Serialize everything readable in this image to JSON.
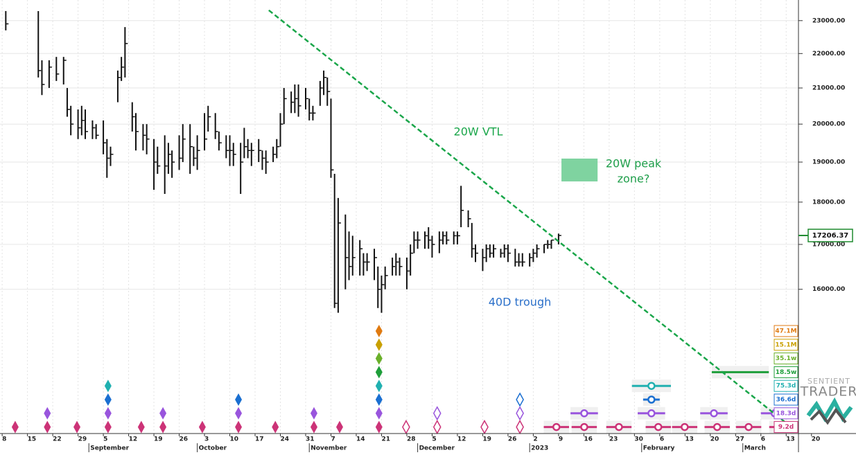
{
  "chart_data": {
    "type": "ohlc",
    "log_y": true,
    "grid": true,
    "color": "#111111",
    "xlim": [
      -0.6,
      220.4
    ],
    "ylim": [
      13180,
      23650
    ],
    "yticks": [
      {
        "value": 16000,
        "label": "16000.00"
      },
      {
        "value": 17000,
        "label": "17000.00"
      },
      {
        "value": 18000,
        "label": "18000.00"
      },
      {
        "value": 19000,
        "label": "19000.00"
      },
      {
        "value": 20000,
        "label": "20000.00"
      },
      {
        "value": 21000,
        "label": "21000.00"
      },
      {
        "value": 22000,
        "label": "22000.00"
      },
      {
        "value": 23000,
        "label": "23000.00"
      }
    ],
    "xticks": [
      {
        "value": 0,
        "label": "8"
      },
      {
        "value": 7,
        "label": "15"
      },
      {
        "value": 14,
        "label": "22"
      },
      {
        "value": 21,
        "label": "29"
      },
      {
        "value": 28,
        "label": "5"
      },
      {
        "value": 35,
        "label": "12"
      },
      {
        "value": 42,
        "label": "19"
      },
      {
        "value": 49,
        "label": "26"
      },
      {
        "value": 56,
        "label": "3"
      },
      {
        "value": 63,
        "label": "10"
      },
      {
        "value": 70,
        "label": "17"
      },
      {
        "value": 77,
        "label": "24"
      },
      {
        "value": 84,
        "label": "31"
      },
      {
        "value": 91,
        "label": "7"
      },
      {
        "value": 98,
        "label": "14"
      },
      {
        "value": 105,
        "label": "21"
      },
      {
        "value": 112,
        "label": "28"
      },
      {
        "value": 119,
        "label": "5"
      },
      {
        "value": 126,
        "label": "12"
      },
      {
        "value": 133,
        "label": "19"
      },
      {
        "value": 140,
        "label": "26"
      },
      {
        "value": 147,
        "label": "2"
      },
      {
        "value": 154,
        "label": "9"
      },
      {
        "value": 161,
        "label": "16"
      },
      {
        "value": 168,
        "label": "23"
      },
      {
        "value": 175,
        "label": "30"
      },
      {
        "value": 182,
        "label": "6"
      },
      {
        "value": 189,
        "label": "13"
      },
      {
        "value": 196,
        "label": "20"
      },
      {
        "value": 203,
        "label": "27"
      },
      {
        "value": 210,
        "label": "6"
      },
      {
        "value": 217,
        "label": "13"
      },
      {
        "value": 224,
        "label": "20"
      }
    ],
    "months": [
      {
        "value": 24,
        "label": "September"
      },
      {
        "value": 54,
        "label": "October"
      },
      {
        "value": 85,
        "label": "November"
      },
      {
        "value": 115,
        "label": "December"
      },
      {
        "value": 146,
        "label": "2023"
      },
      {
        "value": 177,
        "label": "February"
      },
      {
        "value": 205,
        "label": "March"
      }
    ],
    "x": [
      1,
      10,
      11,
      13,
      15,
      17,
      18,
      19,
      21,
      22,
      23,
      25,
      26,
      28,
      29,
      30,
      32,
      33,
      34,
      36,
      37,
      39,
      40,
      42,
      43,
      45,
      46,
      47,
      49,
      50,
      52,
      53,
      54,
      56,
      57,
      59,
      60,
      62,
      63,
      64,
      66,
      67,
      68,
      69,
      71,
      72,
      73,
      75,
      76,
      77,
      78,
      80,
      81,
      82,
      84,
      85,
      86,
      88,
      89,
      90,
      91,
      92,
      93,
      95,
      96,
      97,
      99,
      100,
      101,
      103,
      104,
      105,
      106,
      108,
      109,
      110,
      112,
      113,
      114,
      115,
      117,
      118,
      119,
      121,
      122,
      123,
      125,
      126,
      127,
      129,
      130,
      131,
      133,
      134,
      135,
      136,
      138,
      139,
      140,
      142,
      143,
      144,
      146,
      147,
      148,
      150,
      151,
      152,
      154
    ],
    "high": [
      23300,
      23300,
      21800,
      21800,
      21900,
      21900,
      21000,
      20500,
      20400,
      20500,
      20400,
      20100,
      20000,
      20100,
      19600,
      19400,
      21500,
      21900,
      22800,
      20600,
      20300,
      20000,
      20000,
      19600,
      19400,
      19700,
      19500,
      19300,
      19700,
      20000,
      20000,
      19400,
      19700,
      20300,
      20500,
      20300,
      19800,
      19700,
      19700,
      19500,
      19500,
      19900,
      19600,
      19500,
      19600,
      19300,
      19300,
      19400,
      19600,
      20300,
      21000,
      20900,
      21100,
      21100,
      21000,
      20700,
      20500,
      21200,
      21500,
      21300,
      20700,
      18700,
      18100,
      17700,
      17300,
      17200,
      17100,
      16800,
      16800,
      16900,
      16500,
      16300,
      16500,
      16700,
      16800,
      16700,
      16700,
      17000,
      17300,
      17300,
      17300,
      17400,
      17200,
      17300,
      17300,
      17300,
      17300,
      17300,
      18400,
      17800,
      17500,
      17000,
      16900,
      17000,
      17000,
      17000,
      16900,
      17000,
      17000,
      16900,
      16800,
      16800,
      16800,
      16900,
      17000,
      17000,
      17100,
      17100,
      17250
    ],
    "low": [
      22700,
      21300,
      20800,
      21000,
      21200,
      21100,
      20200,
      19700,
      19600,
      19700,
      19600,
      19600,
      19600,
      19200,
      18600,
      18900,
      20600,
      21200,
      21300,
      19800,
      19300,
      19300,
      19200,
      18300,
      18700,
      18200,
      18700,
      18600,
      18800,
      19000,
      18700,
      18900,
      18800,
      19300,
      19800,
      19600,
      19300,
      19100,
      18900,
      18900,
      18200,
      19100,
      19100,
      18900,
      19000,
      18800,
      18700,
      19000,
      19100,
      19400,
      20000,
      20300,
      20300,
      20200,
      20400,
      20100,
      20100,
      20500,
      20800,
      20500,
      18600,
      15600,
      15500,
      16000,
      16200,
      16300,
      16300,
      16300,
      16400,
      16200,
      15600,
      15500,
      16000,
      16300,
      16300,
      16300,
      16000,
      16300,
      16800,
      16900,
      16900,
      16900,
      16700,
      16800,
      17000,
      17000,
      17000,
      17000,
      17400,
      17400,
      16700,
      16600,
      16400,
      16600,
      16700,
      16700,
      16700,
      16700,
      16600,
      16500,
      16500,
      16500,
      16500,
      16600,
      16700,
      16800,
      16900,
      16900,
      17000
    ],
    "close": [
      22900,
      21500,
      21100,
      21600,
      21400,
      21800,
      20400,
      20000,
      19900,
      20100,
      19800,
      19900,
      19700,
      19500,
      19100,
      19200,
      21300,
      21600,
      22300,
      20200,
      19800,
      19700,
      19600,
      19000,
      18900,
      18900,
      19200,
      19000,
      19100,
      19600,
      19400,
      19100,
      19300,
      19600,
      20200,
      19800,
      19500,
      19300,
      19300,
      19200,
      19000,
      19400,
      19300,
      19300,
      19300,
      19100,
      19000,
      19200,
      19400,
      20000,
      20700,
      20600,
      20700,
      20500,
      20700,
      20300,
      20300,
      21000,
      21300,
      20900,
      18800,
      15700,
      17500,
      16700,
      16500,
      16700,
      16900,
      16600,
      16600,
      16700,
      16000,
      16100,
      16300,
      16500,
      16600,
      16500,
      16400,
      16800,
      17100,
      17100,
      17200,
      17100,
      17000,
      17100,
      17200,
      17100,
      17200,
      17200,
      17800,
      17600,
      16900,
      16800,
      16700,
      16900,
      16800,
      16900,
      16800,
      16900,
      16800,
      16600,
      16600,
      16600,
      16700,
      16800,
      16900,
      17000,
      17000,
      17100,
      17206.37
    ],
    "last_price": 17206.37,
    "last_price_color": "#1e8a2e",
    "trendline": {
      "label": "20W VTL",
      "color": "#1aa64a",
      "x1": 73.8,
      "y1": 23325,
      "x2": 220.4,
      "y2": 13180
    },
    "peak_zone": {
      "label": [
        "20W peak",
        "zone?"
      ],
      "color": "#7fd3a0",
      "text_color": "#1e9e4a",
      "x1": 154.8,
      "x2": 164.8,
      "y1": 18510,
      "y2": 19090
    },
    "trough_note": {
      "label": "40D trough",
      "color": "#2a6fc9"
    },
    "cycles": [
      {
        "name": "47.1M",
        "color": "#e07a10",
        "troughs": [
          104.3
        ],
        "open_troughs": [],
        "projections": [],
        "window": 0
      },
      {
        "name": "15.1M",
        "color": "#c9a000",
        "troughs": [
          104.3
        ],
        "open_troughs": [],
        "projections": [],
        "window": 0
      },
      {
        "name": "35.1w",
        "color": "#6ab02a",
        "troughs": [
          104.3
        ],
        "open_troughs": [],
        "projections": [],
        "window": 0
      },
      {
        "name": "18.5w",
        "color": "#1e9e3a",
        "troughs": [
          104.3
        ],
        "open_troughs": [],
        "projections": [
          204.3
        ],
        "window": 7.9,
        "circle": false
      },
      {
        "name": "75.3d",
        "color": "#20b0b0",
        "troughs": [
          29.3,
          104.3
        ],
        "open_troughs": [],
        "projections": [
          179.7
        ],
        "window": 5.4
      },
      {
        "name": "36.6d",
        "color": "#1a6fd1",
        "troughs": [
          29.3,
          65.4,
          104.3
        ],
        "open_troughs": [
          143.3
        ],
        "projections": [
          179.7
        ],
        "window": 2.3
      },
      {
        "name": "18.3d",
        "color": "#9955dd",
        "troughs": [
          12.5,
          29.3,
          44.5,
          65.4,
          86.3,
          104.3
        ],
        "open_troughs": [
          120.4,
          143.3
        ],
        "projections": [
          161.1,
          179.7,
          197.0,
          213.8
        ],
        "window": 3.8
      },
      {
        "name": "9.2d",
        "color": "#cc3377",
        "troughs": [
          3.6,
          12.5,
          20.7,
          29.3,
          38.5,
          44.5,
          55.4,
          65.4,
          75.6,
          86.3,
          93.4,
          104.3
        ],
        "open_troughs": [
          111.8,
          120.4,
          133.5,
          143.3
        ],
        "projections": [
          153.4,
          161.1,
          170.7,
          181.6,
          188.9,
          197.9,
          206.6,
          215.8
        ],
        "window": 3.5
      }
    ]
  },
  "logo": {
    "line1": "SENTIENT",
    "line2": "TRADER"
  }
}
